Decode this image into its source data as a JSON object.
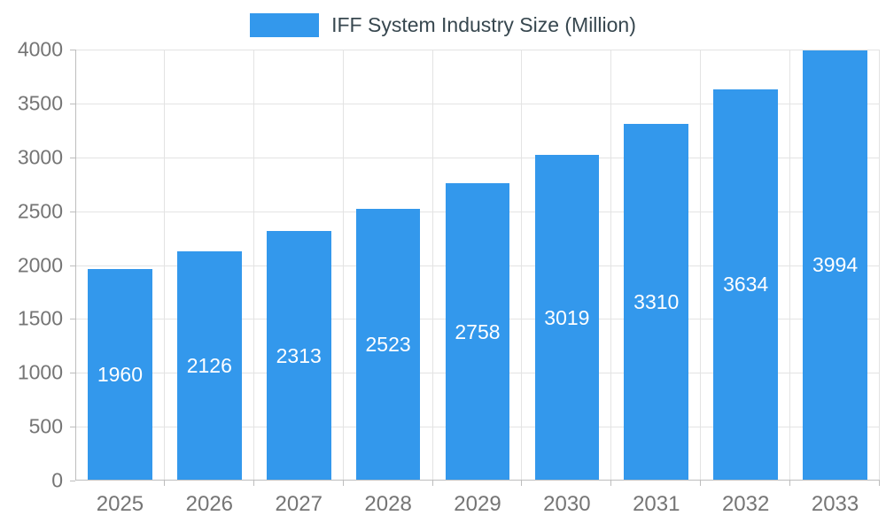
{
  "chart_data": {
    "type": "bar",
    "title": "IFF System Industry Size (Million)",
    "categories": [
      "2025",
      "2026",
      "2027",
      "2028",
      "2029",
      "2030",
      "2031",
      "2032",
      "2033"
    ],
    "values": [
      1960,
      2126,
      2313,
      2523,
      2758,
      3019,
      3310,
      3634,
      3994
    ],
    "xlabel": "",
    "ylabel": "",
    "ylim": [
      0,
      4000
    ],
    "ytick_step": 500,
    "grid": "on",
    "legend_position": "top-center",
    "bar_color": "#3398EC",
    "bar_label_color": "#FFFFFF",
    "axis_text_color": "#757575",
    "legend_text_color": "#37474F",
    "grid_color": "#E3E3E3",
    "axis_line_color": "#BDBDBD"
  }
}
